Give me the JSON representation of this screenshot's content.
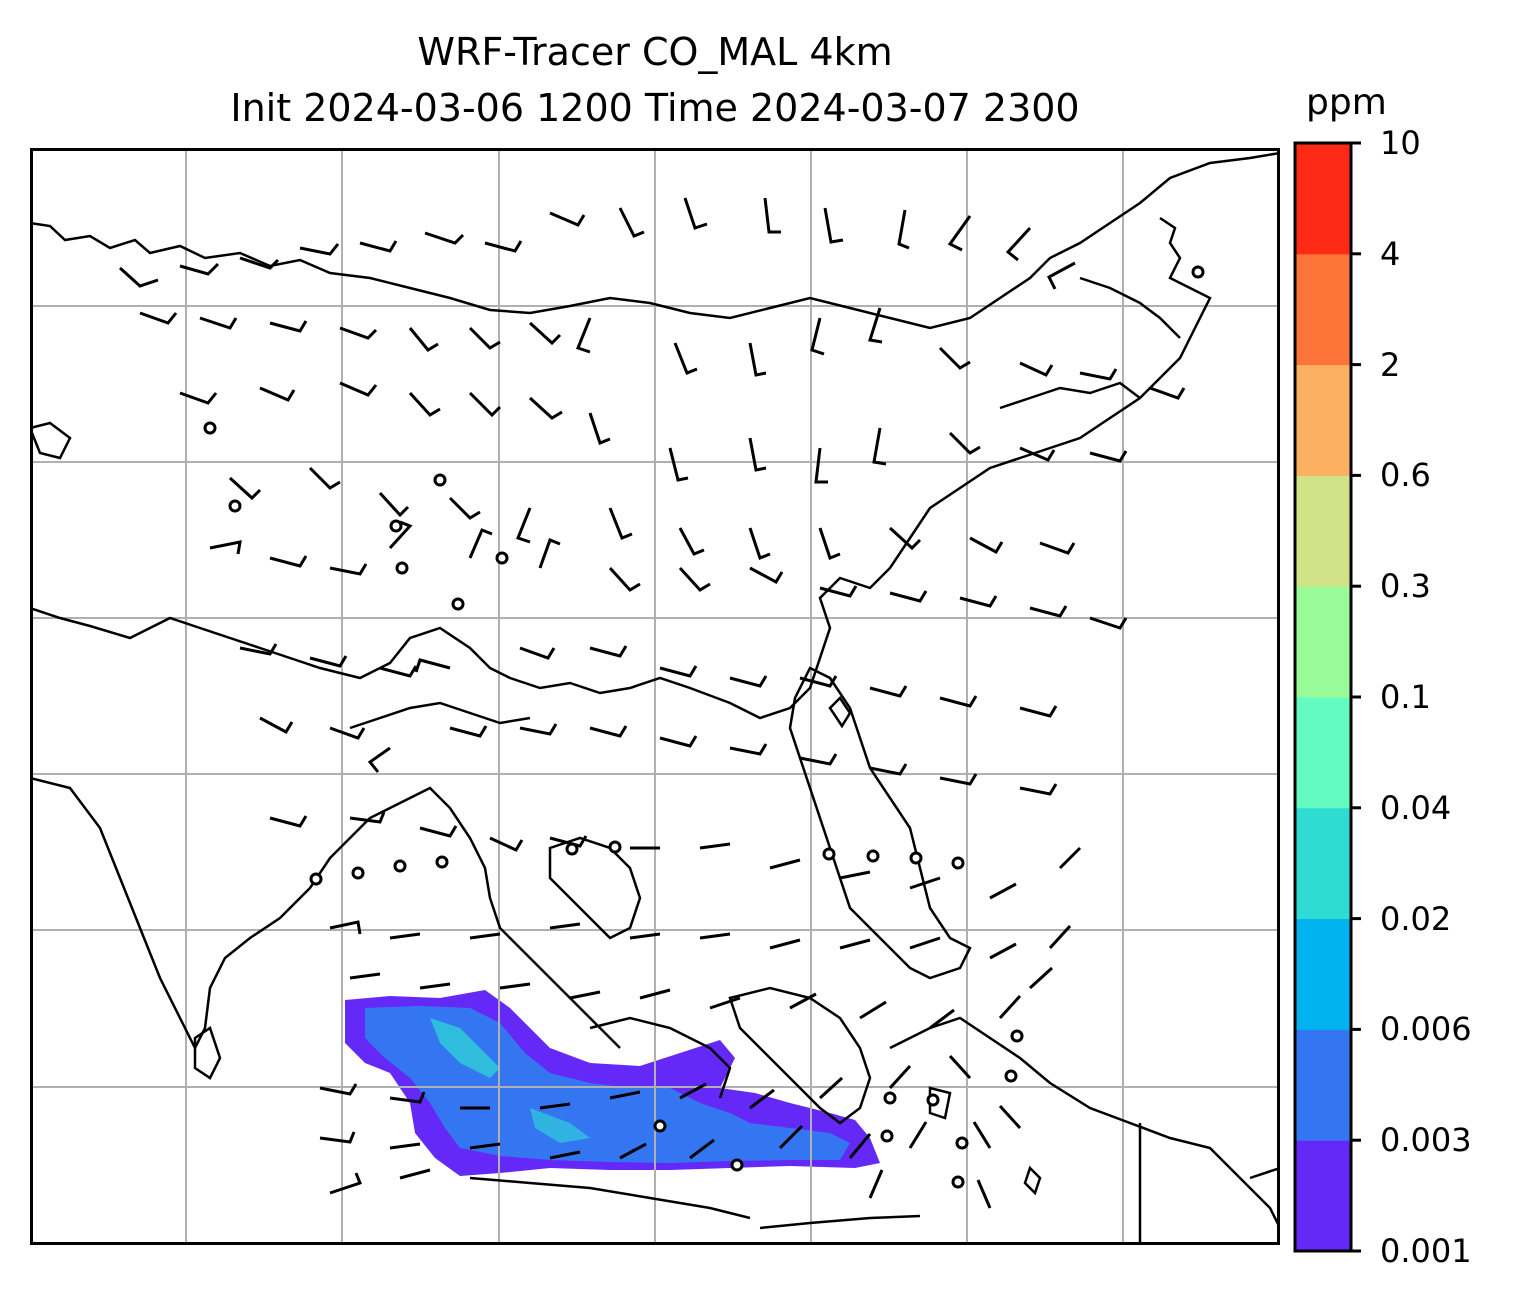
{
  "title_line1": "WRF-Tracer CO_MAL 4km",
  "title_line2": "Init 2024-03-06 1200 Time 2024-03-07 2300",
  "colorbar": {
    "unit": "ppm",
    "levels": [
      "0.001",
      "0.003",
      "0.006",
      "0.02",
      "0.04",
      "0.1",
      "0.3",
      "0.6",
      "2",
      "4",
      "10"
    ],
    "colors": [
      "#6429f7",
      "#3476f2",
      "#00b2ee",
      "#2fdcd4",
      "#64fbc2",
      "#98fb98",
      "#d0e386",
      "#fcb062",
      "#fd7439",
      "#ff2a15"
    ]
  },
  "map": {
    "background": "#ffffff",
    "gridlines": true,
    "tracer_plume_colors": [
      "#6429f7",
      "#3476f2",
      "#2fdcd4"
    ],
    "layers": [
      "coastlines",
      "gridlines",
      "wind-barbs",
      "co-tracer-plume"
    ]
  }
}
